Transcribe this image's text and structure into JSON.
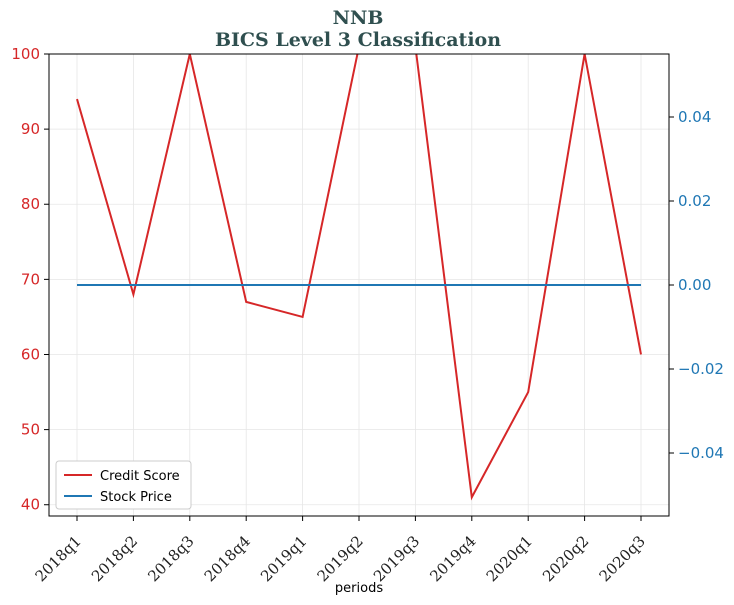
{
  "chart_data": {
    "type": "line",
    "title": "NNB",
    "subtitle": "BICS Level 3 Classification",
    "xlabel": "periods",
    "categories": [
      "2018q1",
      "2018q2",
      "2018q3",
      "2018q4",
      "2019q1",
      "2019q2",
      "2019q3",
      "2019q4",
      "2020q1",
      "2020q2",
      "2020q3"
    ],
    "series": [
      {
        "name": "Credit Score",
        "axis": "left",
        "color": "#d62728",
        "values": [
          94,
          68,
          100,
          67,
          65,
          101,
          101,
          41,
          55,
          100,
          60
        ]
      },
      {
        "name": "Stock Price",
        "axis": "right",
        "color": "#1f77b4",
        "values": [
          0,
          0,
          0,
          0,
          0,
          0,
          0,
          0,
          0,
          0,
          0
        ]
      }
    ],
    "ylim_left": [
      38.5,
      100
    ],
    "yticks_left": [
      "40",
      "50",
      "60",
      "70",
      "80",
      "90",
      "100"
    ],
    "yticks_left_values": [
      40,
      50,
      60,
      70,
      80,
      90,
      100
    ],
    "ylim_right": [
      -0.055,
      0.055
    ],
    "yticks_right": [
      "−0.04",
      "−0.02",
      "0.00",
      "0.02",
      "0.04"
    ],
    "yticks_right_values": [
      -0.04,
      -0.02,
      0,
      0.02,
      0.04
    ],
    "grid": true,
    "legend_position": "lower-left"
  }
}
